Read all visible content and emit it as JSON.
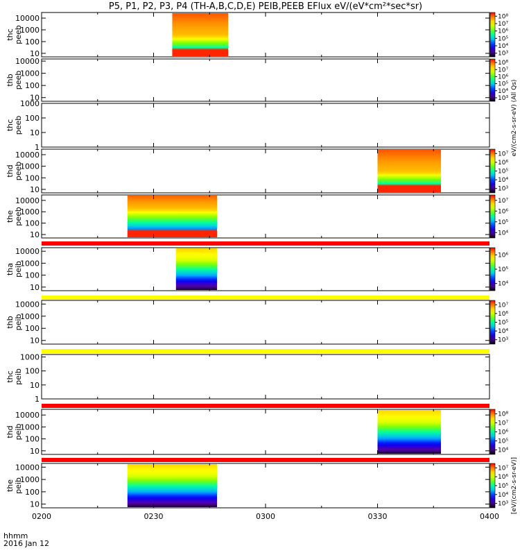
{
  "title": "P5, P1, P2, P3, P4 (TH-A,B,C,D,E) PEIB,PEEB EFlux eV/(eV*cm²*sec*sr)",
  "footer": {
    "time_label": "hhmm",
    "date_label": "2016 Jan 12"
  },
  "x_ticks": [
    "0200",
    "0230",
    "0300",
    "0330",
    "0400"
  ],
  "colorbar_label_top": "eV/(cm2-s-sr-eV) (All Qs)",
  "colorbar_label_bottom": "[eV/(cm2-s-sr-eV)]",
  "chart_data": {
    "type": "heatmap",
    "x_range": [
      "0200",
      "0400"
    ],
    "y_scale": "log",
    "colorscale": [
      "#ffffff",
      "#000000",
      "#5500aa",
      "#0000ff",
      "#00b4ff",
      "#00ffa0",
      "#7fff00",
      "#ffff00",
      "#ff9900",
      "#ff0000"
    ],
    "panels": [
      {
        "name": "thc\npeeb",
        "ylim": [
          5,
          30000
        ],
        "yticks": [
          "10",
          "100",
          "1000",
          "10000"
        ],
        "data_x": [
          "0235",
          "0250"
        ],
        "cbar_ticks": [
          "10³",
          "10⁴",
          "10⁵",
          "10⁶",
          "10⁷",
          "10⁸"
        ],
        "profile": "peeb_hi"
      },
      {
        "name": "thb\npeeb",
        "ylim": [
          5,
          15000
        ],
        "yticks": [
          "10",
          "100",
          "1000",
          "10000"
        ],
        "data_x": null,
        "cbar_ticks": [
          "10³",
          "10⁴",
          "10⁵",
          "10⁶",
          "10⁷",
          "10⁸"
        ]
      },
      {
        "name": "thc\npeeb",
        "ylim": [
          1,
          1000
        ],
        "yticks": [
          "1",
          "10",
          "100",
          "1000"
        ],
        "data_x": null,
        "cbar_ticks": []
      },
      {
        "name": "thd\npeeb",
        "ylim": [
          5,
          30000
        ],
        "yticks": [
          "10",
          "100",
          "1000",
          "10000"
        ],
        "data_x": [
          "0330",
          "0347"
        ],
        "cbar_ticks": [
          "10³",
          "10⁴",
          "10⁵",
          "10⁶",
          "10⁷"
        ],
        "profile": "peeb_hi"
      },
      {
        "name": "the\npeeb",
        "ylim": [
          5,
          30000
        ],
        "yticks": [
          "10",
          "100",
          "1000",
          "10000"
        ],
        "data_x": [
          "0223",
          "0247"
        ],
        "cbar_ticks": [
          "10⁴",
          "10⁵",
          "10⁶",
          "10⁷"
        ],
        "profile": "peeb_wide"
      },
      {
        "name": "tha\npeib",
        "ylim": [
          5,
          20000
        ],
        "yticks": [
          "10",
          "100",
          "1000",
          "10000"
        ],
        "data_x": [
          "0236",
          "0247"
        ],
        "cbar_ticks": [
          "10⁴",
          "10⁵",
          "10⁶"
        ],
        "profile": "peib"
      },
      {
        "name": "thb\npeib",
        "ylim": [
          5,
          20000
        ],
        "yticks": [
          "10",
          "100",
          "1000",
          "10000"
        ],
        "data_x": null,
        "cbar_ticks": [
          "10³",
          "10⁴",
          "10⁵",
          "10⁶",
          "10⁷"
        ]
      },
      {
        "name": "thc\npeib",
        "ylim": [
          1,
          1500
        ],
        "yticks": [
          "1",
          "10",
          "100",
          "1000"
        ],
        "data_x": null,
        "cbar_ticks": []
      },
      {
        "name": "thd\npeib",
        "ylim": [
          5,
          30000
        ],
        "yticks": [
          "10",
          "100",
          "1000",
          "10000"
        ],
        "data_x": [
          "0330",
          "0347"
        ],
        "cbar_ticks": [
          "10⁴",
          "10⁵",
          "10⁶",
          "10⁷",
          "10⁸"
        ],
        "profile": "peib"
      },
      {
        "name": "the\npeib",
        "ylim": [
          5,
          20000
        ],
        "yticks": [
          "10",
          "100",
          "1000",
          "10000"
        ],
        "data_x": [
          "0223",
          "0247"
        ],
        "cbar_ticks": [
          "10³",
          "10⁴",
          "10⁵",
          "10⁶",
          "10⁷"
        ],
        "profile": "peib"
      }
    ],
    "quality_bars": [
      {
        "color": "#ff0000"
      },
      {
        "color": "#ffff00"
      },
      {
        "color": "#ffff00"
      },
      {
        "color": "#ff0000"
      },
      {
        "color": "#ff0000"
      }
    ]
  }
}
